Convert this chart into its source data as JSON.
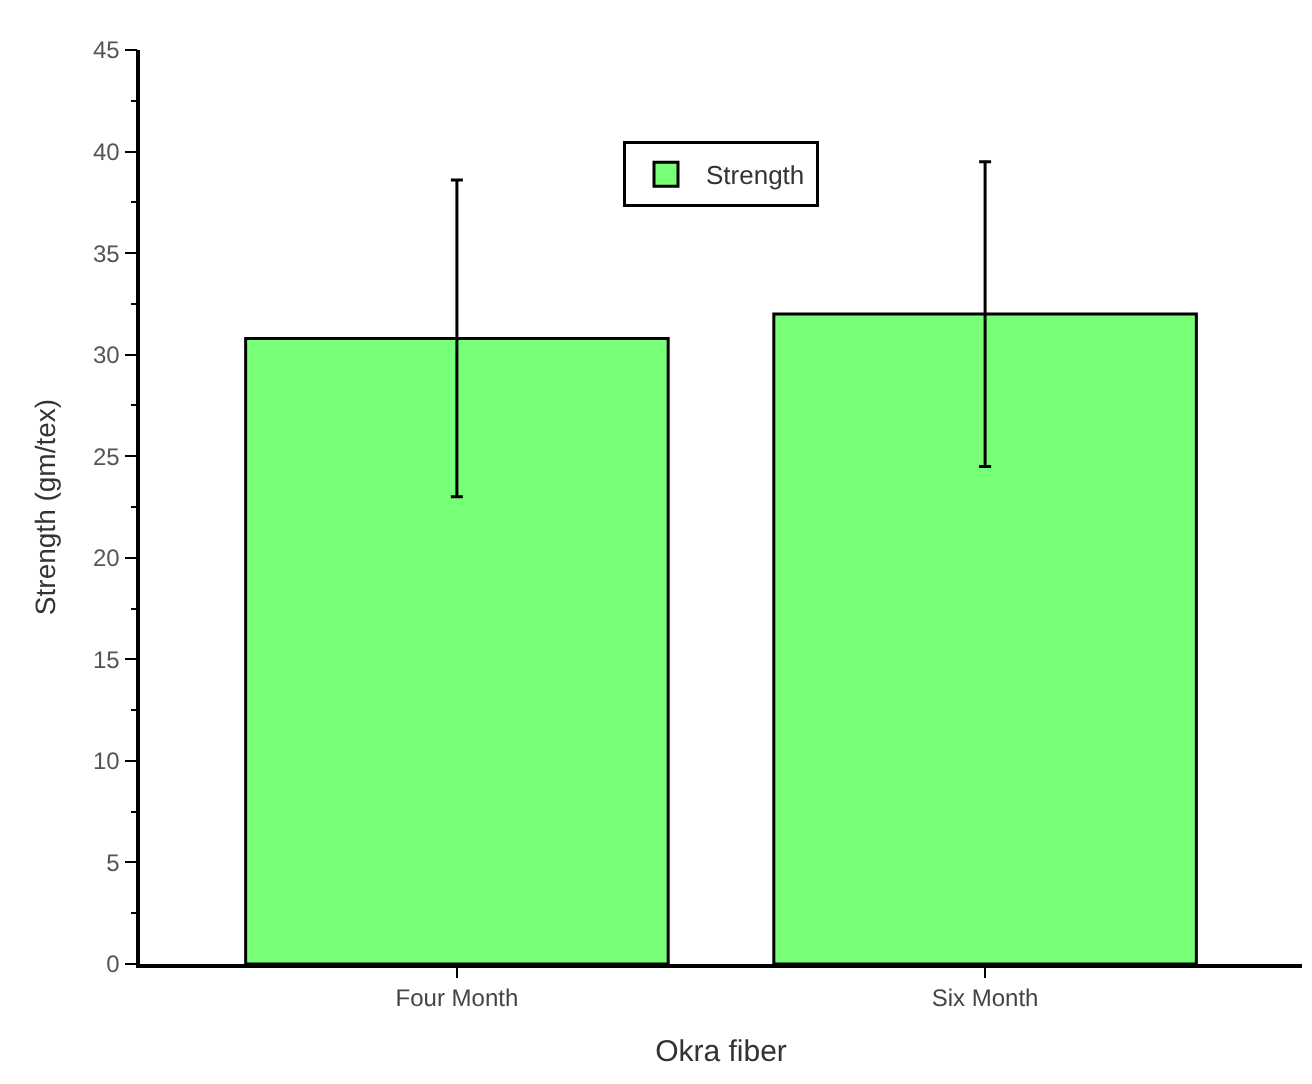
{
  "chart_data": {
    "type": "bar",
    "xlabel": "Okra fiber",
    "ylabel": "Strength (gm/tex)",
    "categories": [
      "Four Month",
      "Six Month"
    ],
    "series": [
      {
        "name": "Strength",
        "color": "#77ff77",
        "values": [
          30.8,
          32.0
        ],
        "errors": [
          7.8,
          7.5
        ]
      }
    ],
    "ylim": [
      0,
      45
    ],
    "yticks": [
      0,
      5,
      10,
      15,
      20,
      25,
      30,
      35,
      40,
      45
    ],
    "legend": "top"
  }
}
